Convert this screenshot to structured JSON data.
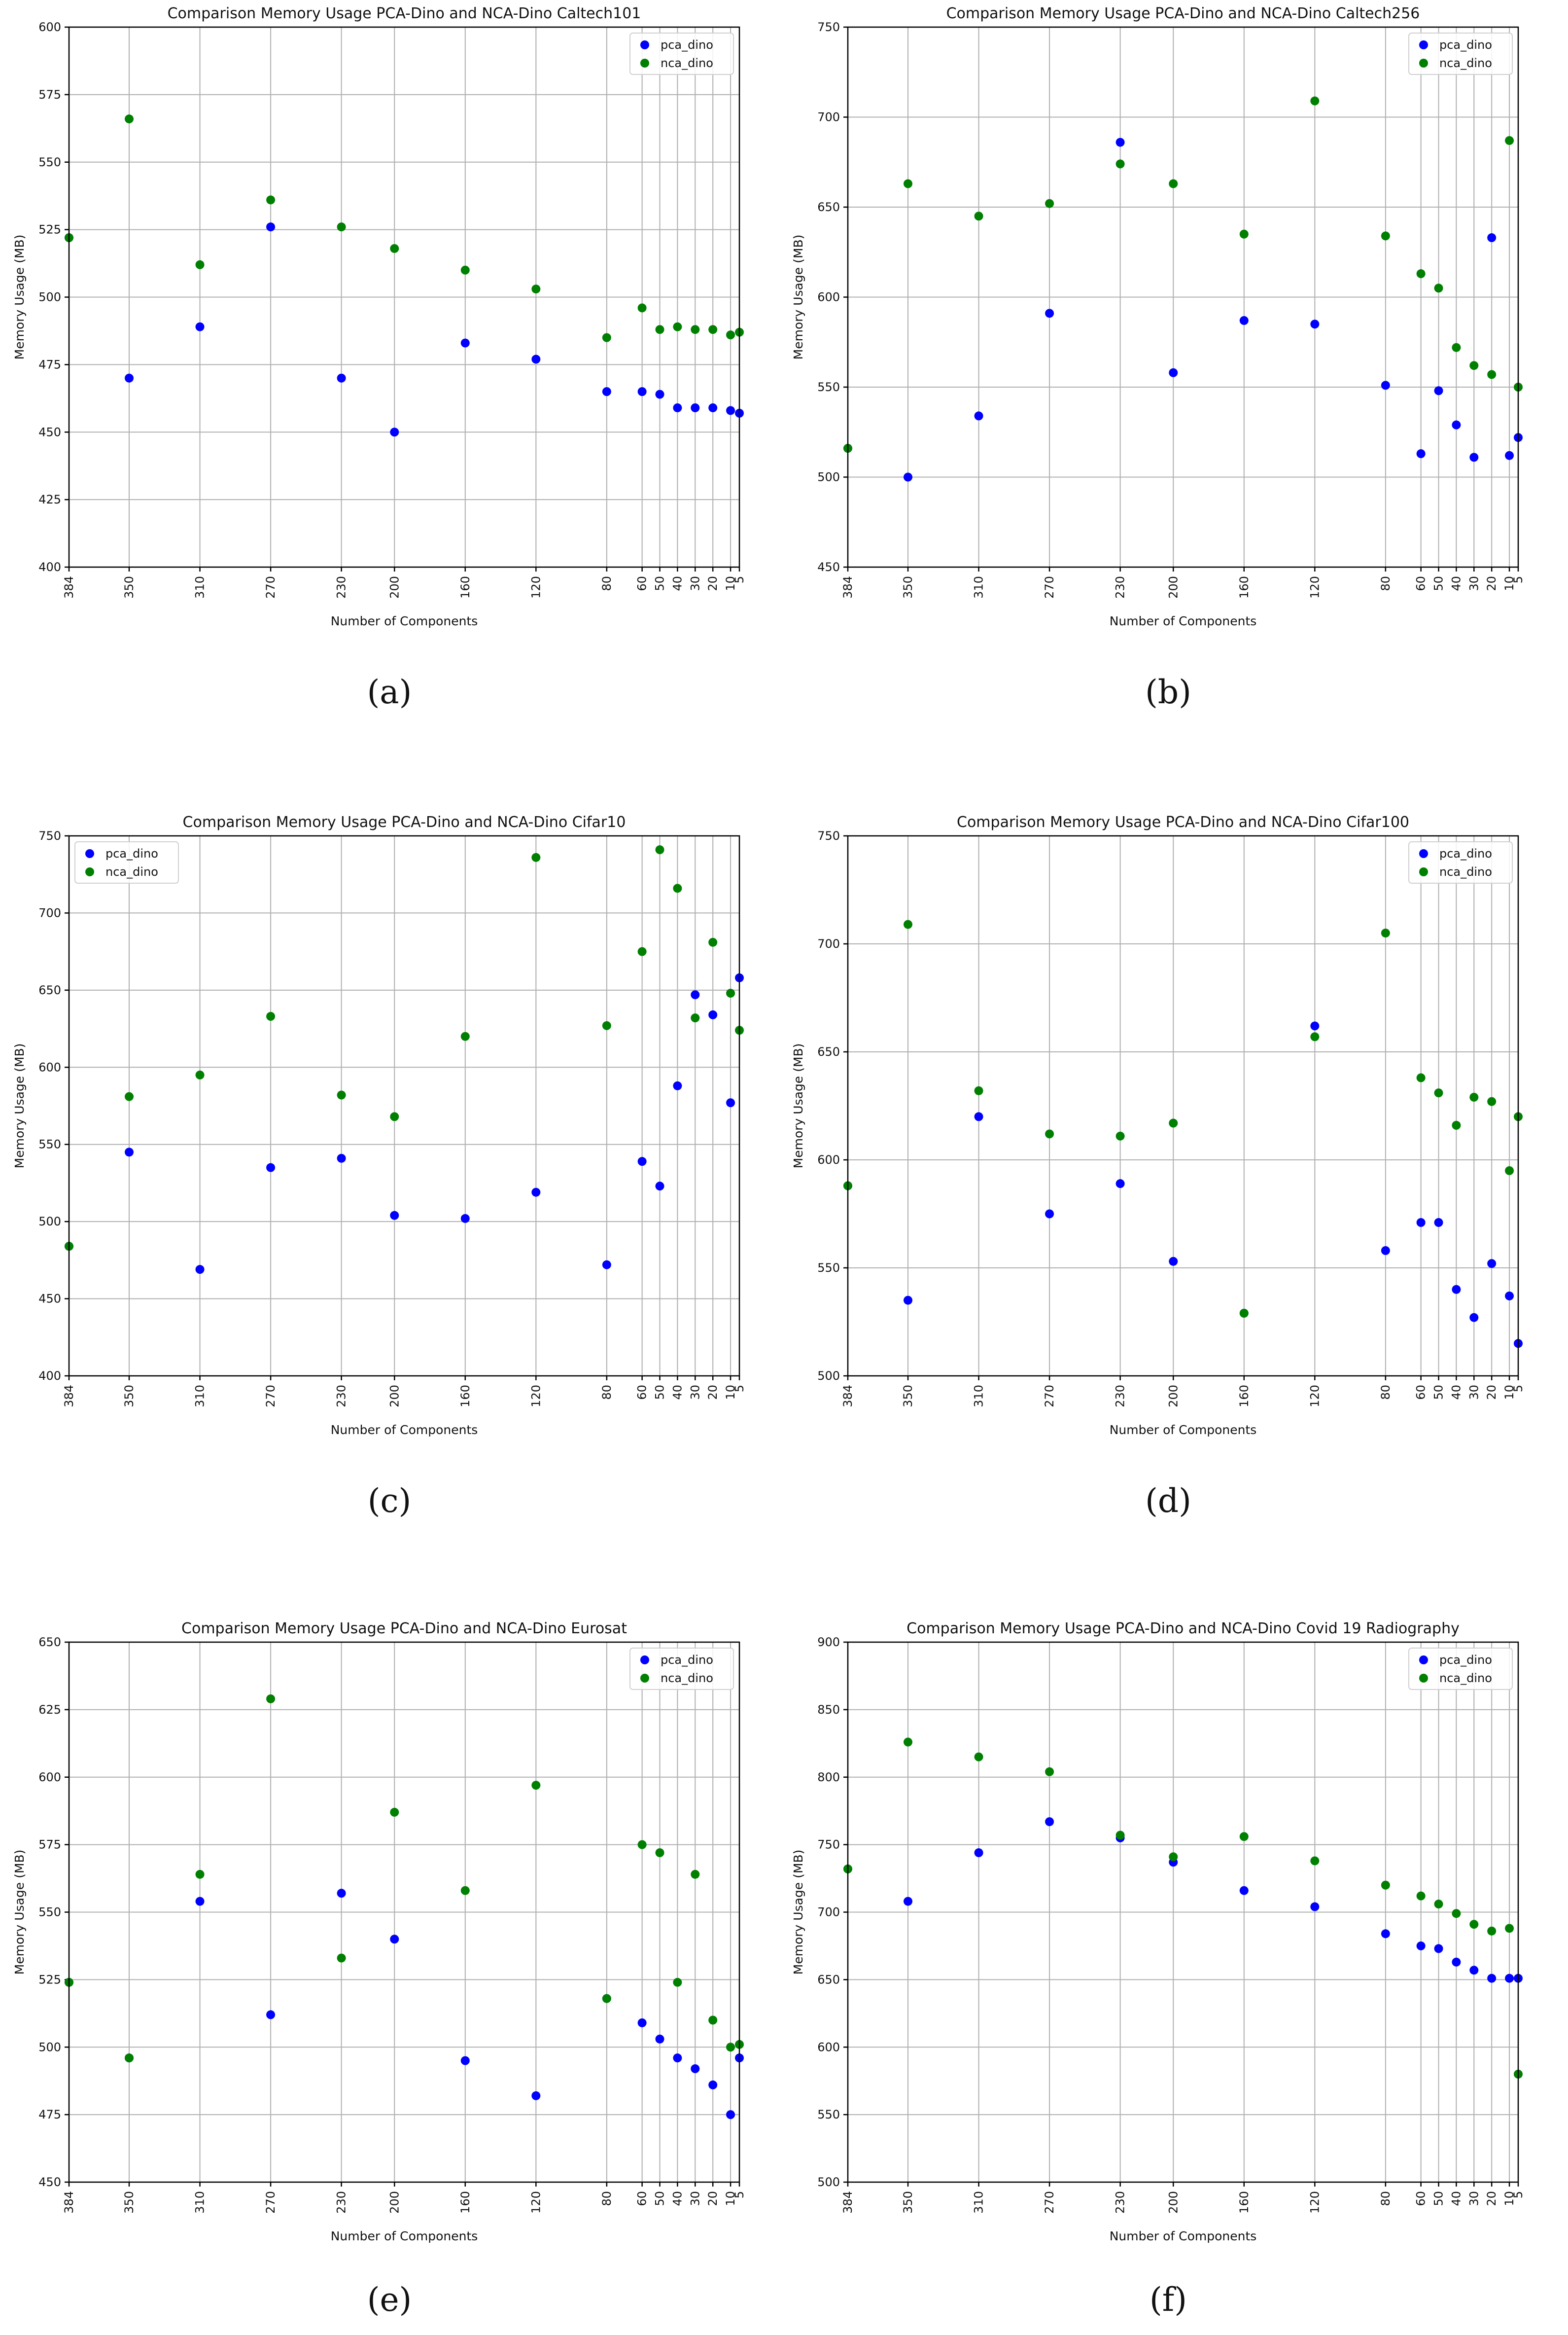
{
  "colors": {
    "pca": "#0000ff",
    "nca": "#008000"
  },
  "chart_data": [
    {
      "type": "scatter",
      "title": "Comparison Memory Usage PCA-Dino and NCA-Dino Caltech101",
      "caption": "(a)",
      "xlabel": "Number of Components",
      "ylabel": "Memory Usage (MB)",
      "ylim": [
        400,
        600
      ],
      "yticks": [
        400,
        425,
        450,
        475,
        500,
        525,
        550,
        575,
        600
      ],
      "legend": "top-right",
      "x": [
        384,
        350,
        310,
        270,
        230,
        200,
        160,
        120,
        80,
        60,
        50,
        40,
        30,
        20,
        10,
        5
      ],
      "series": [
        {
          "name": "pca_dino",
          "values": [
            522,
            470,
            489,
            526,
            470,
            450,
            483,
            477,
            465,
            465,
            464,
            459,
            459,
            459,
            458,
            457
          ]
        },
        {
          "name": "nca_dino",
          "values": [
            522,
            566,
            512,
            536,
            526,
            518,
            510,
            503,
            485,
            496,
            488,
            489,
            488,
            488,
            486,
            487
          ]
        }
      ]
    },
    {
      "type": "scatter",
      "title": "Comparison Memory Usage PCA-Dino and NCA-Dino Caltech256",
      "caption": "(b)",
      "xlabel": "Number of Components",
      "ylabel": "Memory Usage (MB)",
      "ylim": [
        450,
        750
      ],
      "yticks": [
        450,
        500,
        550,
        600,
        650,
        700,
        750
      ],
      "legend": "top-right",
      "x": [
        384,
        350,
        310,
        270,
        230,
        200,
        160,
        120,
        80,
        60,
        50,
        40,
        30,
        20,
        10,
        5
      ],
      "series": [
        {
          "name": "pca_dino",
          "values": [
            516,
            500,
            534,
            591,
            686,
            558,
            587,
            585,
            551,
            513,
            548,
            529,
            511,
            633,
            512,
            522
          ]
        },
        {
          "name": "nca_dino",
          "values": [
            516,
            663,
            645,
            652,
            674,
            663,
            635,
            709,
            634,
            613,
            605,
            572,
            562,
            557,
            687,
            550
          ]
        }
      ]
    },
    {
      "type": "scatter",
      "title": "Comparison Memory Usage PCA-Dino and NCA-Dino Cifar10",
      "caption": "(c)",
      "xlabel": "Number of Components",
      "ylabel": "Memory Usage (MB)",
      "ylim": [
        400,
        750
      ],
      "yticks": [
        400,
        450,
        500,
        550,
        600,
        650,
        700,
        750
      ],
      "legend": "top-left",
      "x": [
        384,
        350,
        310,
        270,
        230,
        200,
        160,
        120,
        80,
        60,
        50,
        40,
        30,
        20,
        10,
        5
      ],
      "series": [
        {
          "name": "pca_dino",
          "values": [
            484,
            545,
            469,
            535,
            541,
            504,
            502,
            519,
            472,
            539,
            523,
            588,
            647,
            634,
            577,
            658
          ]
        },
        {
          "name": "nca_dino",
          "values": [
            484,
            581,
            595,
            633,
            582,
            568,
            620,
            736,
            627,
            675,
            741,
            716,
            632,
            681,
            648,
            624
          ]
        }
      ]
    },
    {
      "type": "scatter",
      "title": "Comparison Memory Usage PCA-Dino and NCA-Dino Cifar100",
      "caption": "(d)",
      "xlabel": "Number of Components",
      "ylabel": "Memory Usage (MB)",
      "ylim": [
        500,
        750
      ],
      "yticks": [
        500,
        550,
        600,
        650,
        700,
        750
      ],
      "legend": "top-right",
      "x": [
        384,
        350,
        310,
        270,
        230,
        200,
        160,
        120,
        80,
        60,
        50,
        40,
        30,
        20,
        10,
        5
      ],
      "series": [
        {
          "name": "pca_dino",
          "values": [
            588,
            535,
            620,
            575,
            589,
            553,
            529,
            662,
            558,
            571,
            571,
            540,
            527,
            552,
            537,
            515
          ]
        },
        {
          "name": "nca_dino",
          "values": [
            588,
            709,
            632,
            612,
            611,
            617,
            529,
            657,
            705,
            638,
            631,
            616,
            629,
            627,
            595,
            620
          ]
        }
      ]
    },
    {
      "type": "scatter",
      "title": "Comparison Memory Usage PCA-Dino and NCA-Dino Eurosat",
      "caption": "(e)",
      "xlabel": "Number of Components",
      "ylabel": "Memory Usage (MB)",
      "ylim": [
        450,
        650
      ],
      "yticks": [
        450,
        475,
        500,
        525,
        550,
        575,
        600,
        625,
        650
      ],
      "legend": "top-right",
      "x": [
        384,
        350,
        310,
        270,
        230,
        200,
        160,
        120,
        80,
        60,
        50,
        40,
        30,
        20,
        10,
        5
      ],
      "series": [
        {
          "name": "pca_dino",
          "values": [
            524,
            496,
            554,
            512,
            557,
            540,
            495,
            482,
            518,
            509,
            503,
            496,
            492,
            486,
            475,
            496
          ]
        },
        {
          "name": "nca_dino",
          "values": [
            524,
            496,
            564,
            629,
            533,
            587,
            558,
            597,
            518,
            575,
            572,
            524,
            564,
            510,
            500,
            501
          ]
        }
      ]
    },
    {
      "type": "scatter",
      "title": "Comparison Memory Usage PCA-Dino and NCA-Dino Covid 19 Radiography",
      "caption": "(f)",
      "xlabel": "Number of Components",
      "ylabel": "Memory Usage (MB)",
      "ylim": [
        500,
        900
      ],
      "yticks": [
        500,
        550,
        600,
        650,
        700,
        750,
        800,
        850,
        900
      ],
      "legend": "top-right",
      "x": [
        384,
        350,
        310,
        270,
        230,
        200,
        160,
        120,
        80,
        60,
        50,
        40,
        30,
        20,
        10,
        5
      ],
      "series": [
        {
          "name": "pca_dino",
          "values": [
            732,
            708,
            744,
            767,
            755,
            737,
            716,
            704,
            684,
            675,
            673,
            663,
            657,
            651,
            651,
            651
          ]
        },
        {
          "name": "nca_dino",
          "values": [
            732,
            826,
            815,
            804,
            757,
            741,
            756,
            738,
            720,
            712,
            706,
            699,
            691,
            686,
            688,
            580
          ]
        }
      ]
    }
  ]
}
